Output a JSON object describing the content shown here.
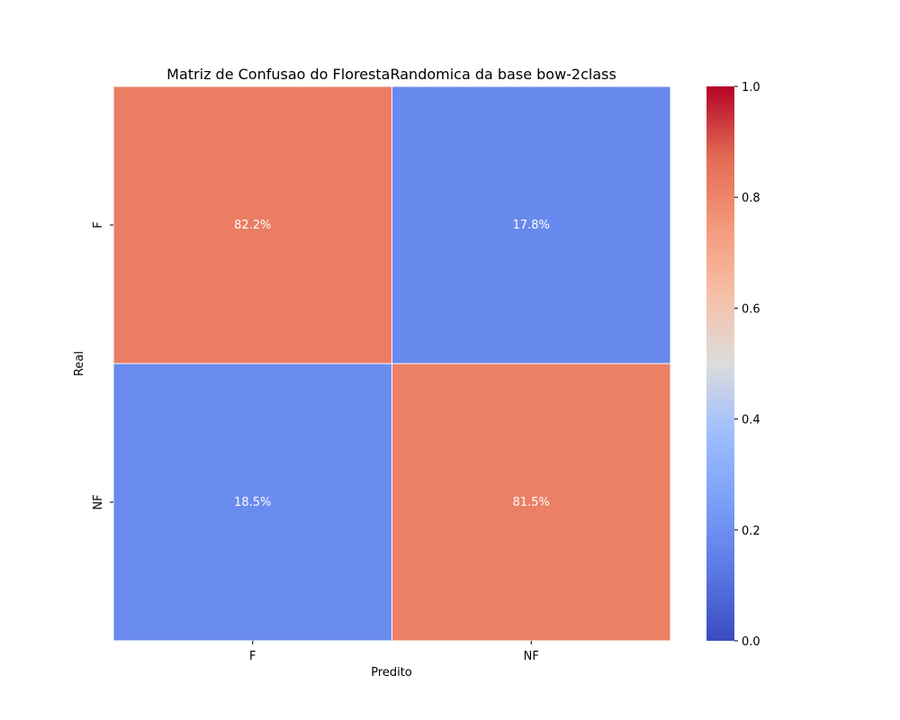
{
  "chart_data": {
    "type": "heatmap",
    "title": "Matriz de Confusao do FlorestaRandomica da base bow-2class",
    "xlabel": "Predito",
    "ylabel": "Real",
    "x_categories": [
      "F",
      "NF"
    ],
    "y_categories": [
      "F",
      "NF"
    ],
    "values": [
      [
        0.822,
        0.178
      ],
      [
        0.185,
        0.815
      ]
    ],
    "cell_labels": [
      [
        "82.2%",
        "17.8%"
      ],
      [
        "18.5%",
        "81.5%"
      ]
    ],
    "colormap": "coolwarm",
    "colorbar": {
      "range": [
        0.0,
        1.0
      ],
      "ticks": [
        0.0,
        0.2,
        0.4,
        0.6,
        0.8,
        1.0
      ],
      "tick_labels": [
        "0.0",
        "0.2",
        "0.4",
        "0.6",
        "0.8",
        "1.0"
      ]
    },
    "grid": false
  }
}
